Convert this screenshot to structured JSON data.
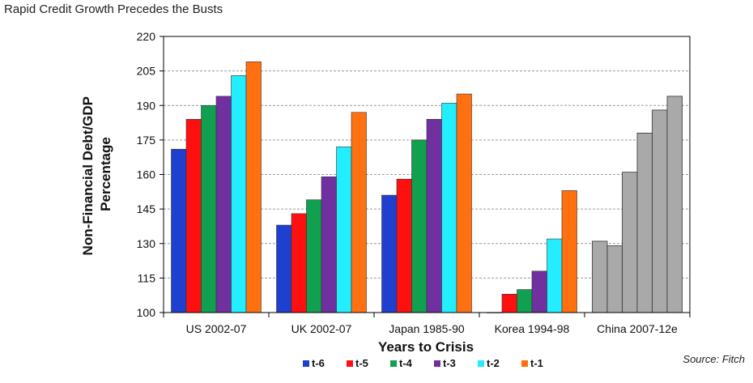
{
  "chart_data": {
    "type": "bar",
    "title": "Rapid Credit Growth Precedes the Busts",
    "xlabel": "Years to Crisis",
    "ylabel": "Non-Financial Debt/GDP Percentage",
    "ylabel_lines": [
      "Non-Financial Debt/GDP",
      "Percentage"
    ],
    "ylim": [
      100,
      220
    ],
    "yticks": [
      100,
      115,
      130,
      145,
      160,
      175,
      190,
      205,
      220
    ],
    "grid": true,
    "legend_position": "bottom",
    "source": "Source: Fitch",
    "categories": [
      "US 2002-07",
      "UK 2002-07",
      "Japan 1985-90",
      "Korea 1994-98",
      "China 2007-12e"
    ],
    "series": [
      {
        "name": "t-6",
        "color": "#1f3fcf",
        "values": [
          171,
          138,
          151,
          100,
          null
        ]
      },
      {
        "name": "t-5",
        "color": "#ff1010",
        "values": [
          184,
          143,
          158,
          108,
          null
        ]
      },
      {
        "name": "t-4",
        "color": "#10a050",
        "values": [
          190,
          149,
          175,
          110,
          null
        ]
      },
      {
        "name": "t-3",
        "color": "#7030a0",
        "values": [
          194,
          159,
          184,
          118,
          null
        ]
      },
      {
        "name": "t-2",
        "color": "#22eeff",
        "values": [
          203,
          172,
          191,
          132,
          null
        ]
      },
      {
        "name": "t-1",
        "color": "#ff7010",
        "values": [
          209,
          187,
          195,
          153,
          null
        ]
      }
    ],
    "china_values": [
      131,
      129,
      161,
      178,
      188,
      194
    ],
    "china_color": "#a9a9a9"
  }
}
